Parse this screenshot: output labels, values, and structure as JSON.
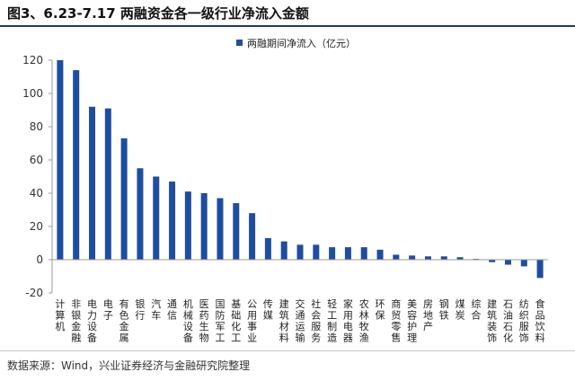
{
  "title": "图3、6.23-7.17 两融资金各一级行业净流入金额",
  "source": "数据来源：Wind，兴业证券经济与金融研究院整理",
  "colors": {
    "bar": "#1f4e9c",
    "axis": "#999999",
    "title_rule": "#1b3a7a"
  },
  "chart_data": {
    "type": "bar",
    "title": "图3、6.23-7.17 两融资金各一级行业净流入金额",
    "xlabel": "",
    "ylabel": "",
    "ylim": [
      -20,
      120
    ],
    "yticks": [
      -20,
      0,
      20,
      40,
      60,
      80,
      100,
      120
    ],
    "grid": false,
    "legend_position": "top-right",
    "categories": [
      "计算机",
      "非银金融",
      "电力设备",
      "电子",
      "有色金属",
      "银行",
      "汽车",
      "通信",
      "机械设备",
      "医药生物",
      "国防军工",
      "基础化工",
      "公用事业",
      "传媒",
      "建筑材料",
      "交通运输",
      "社会服务",
      "轻工制造",
      "家用电器",
      "农林牧渔",
      "环保",
      "商贸零售",
      "美容护理",
      "房地产",
      "钢铁",
      "煤炭",
      "综合",
      "建筑装饰",
      "石油石化",
      "纺织服饰",
      "食品饮料"
    ],
    "series": [
      {
        "name": "两融期间净流入（亿元）",
        "values": [
          120,
          114,
          92,
          91,
          73,
          55,
          50,
          47,
          41,
          40,
          37,
          34,
          28,
          13,
          11,
          9,
          9,
          7.5,
          7.5,
          7.5,
          6,
          3,
          2.5,
          2,
          2,
          1.5,
          0.5,
          -1.5,
          -3,
          -4,
          -11
        ]
      }
    ]
  }
}
